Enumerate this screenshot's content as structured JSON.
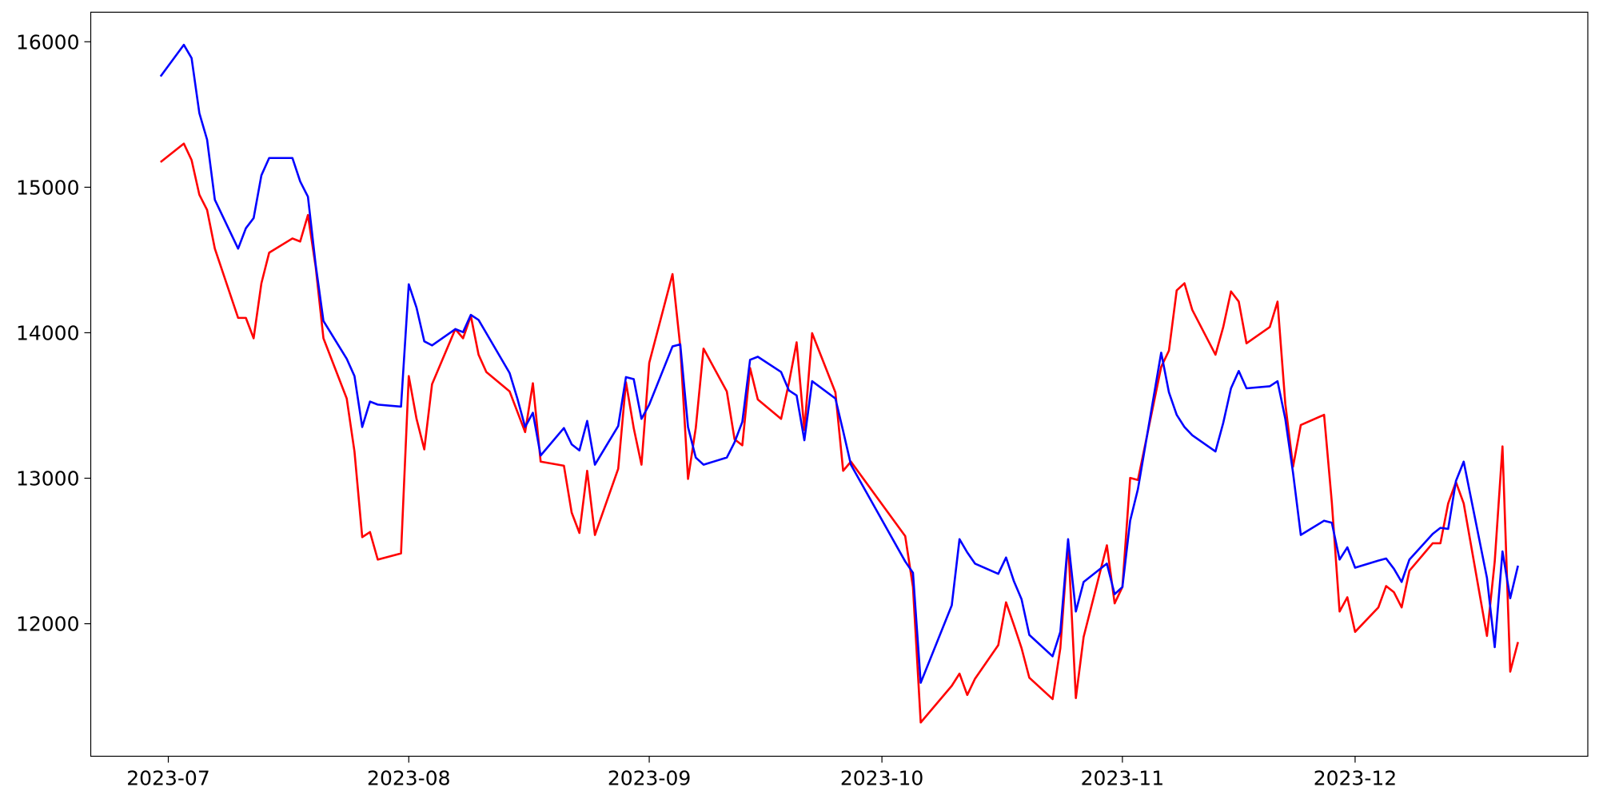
{
  "chart_data": {
    "type": "line",
    "x": [
      "2023-06-30",
      "2023-07-03",
      "2023-07-04",
      "2023-07-05",
      "2023-07-06",
      "2023-07-07",
      "2023-07-10",
      "2023-07-11",
      "2023-07-12",
      "2023-07-13",
      "2023-07-14",
      "2023-07-17",
      "2023-07-18",
      "2023-07-19",
      "2023-07-20",
      "2023-07-21",
      "2023-07-24",
      "2023-07-25",
      "2023-07-26",
      "2023-07-27",
      "2023-07-28",
      "2023-07-31",
      "2023-08-01",
      "2023-08-02",
      "2023-08-03",
      "2023-08-04",
      "2023-08-07",
      "2023-08-08",
      "2023-08-09",
      "2023-08-10",
      "2023-08-11",
      "2023-08-14",
      "2023-08-15",
      "2023-08-16",
      "2023-08-17",
      "2023-08-18",
      "2023-08-21",
      "2023-08-22",
      "2023-08-23",
      "2023-08-24",
      "2023-08-25",
      "2023-08-28",
      "2023-08-29",
      "2023-08-30",
      "2023-08-31",
      "2023-09-01",
      "2023-09-04",
      "2023-09-05",
      "2023-09-06",
      "2023-09-07",
      "2023-09-08",
      "2023-09-11",
      "2023-09-12",
      "2023-09-13",
      "2023-09-14",
      "2023-09-15",
      "2023-09-18",
      "2023-09-19",
      "2023-09-20",
      "2023-09-21",
      "2023-09-22",
      "2023-09-25",
      "2023-09-26",
      "2023-09-27",
      "2023-10-04",
      "2023-10-05",
      "2023-10-06",
      "2023-10-10",
      "2023-10-11",
      "2023-10-12",
      "2023-10-13",
      "2023-10-16",
      "2023-10-17",
      "2023-10-18",
      "2023-10-19",
      "2023-10-20",
      "2023-10-23",
      "2023-10-24",
      "2023-10-25",
      "2023-10-26",
      "2023-10-27",
      "2023-10-30",
      "2023-10-31",
      "2023-11-01",
      "2023-11-02",
      "2023-11-03",
      "2023-11-06",
      "2023-11-07",
      "2023-11-08",
      "2023-11-09",
      "2023-11-10",
      "2023-11-13",
      "2023-11-14",
      "2023-11-15",
      "2023-11-16",
      "2023-11-17",
      "2023-11-20",
      "2023-11-21",
      "2023-11-22",
      "2023-11-23",
      "2023-11-24",
      "2023-11-27",
      "2023-11-28",
      "2023-11-29",
      "2023-11-30",
      "2023-12-01",
      "2023-12-04",
      "2023-12-05",
      "2023-12-06",
      "2023-12-07",
      "2023-12-08",
      "2023-12-11",
      "2023-12-12",
      "2023-12-13",
      "2023-12-14",
      "2023-12-15",
      "2023-12-18",
      "2023-12-19",
      "2023-12-20",
      "2023-12-21",
      "2023-12-22"
    ],
    "series": [
      {
        "color": "#ff0000",
        "values": [
          15173,
          15300,
          15187,
          14949,
          14844,
          14578,
          14102,
          14102,
          13962,
          14340,
          14550,
          14648,
          14627,
          14809,
          14452,
          13962,
          13548,
          13184,
          12595,
          12630,
          12441,
          12483,
          13702,
          13408,
          13198,
          13646,
          14025,
          13962,
          14116,
          13849,
          13730,
          13597,
          13457,
          13317,
          13653,
          13114,
          13086,
          12764,
          12624,
          13051,
          12610,
          13065,
          13660,
          13345,
          13093,
          13793,
          14403,
          13906,
          12995,
          13345,
          13891,
          13597,
          13268,
          13226,
          13758,
          13541,
          13408,
          13653,
          13934,
          13331,
          13997,
          13590,
          13051,
          13114,
          12602,
          12252,
          11321,
          11573,
          11657,
          11510,
          11622,
          11853,
          12147,
          11993,
          11832,
          11629,
          11482,
          11832,
          12567,
          11489,
          11909,
          12539,
          12140,
          12252,
          13002,
          12988,
          13765,
          13877,
          14291,
          14340,
          14158,
          13849,
          14039,
          14284,
          14214,
          13927,
          14039,
          14214,
          13513,
          13079,
          13366,
          13436,
          12834,
          12084,
          12182,
          11944,
          12112,
          12259,
          12217,
          12112,
          12364,
          12553,
          12553,
          12827,
          12974,
          12827,
          11916,
          12428,
          13219,
          11671,
          11874
        ]
      },
      {
        "color": "#0000ff",
        "values": [
          15762,
          15979,
          15888,
          15510,
          15327,
          14914,
          14578,
          14718,
          14788,
          15082,
          15201,
          15201,
          15040,
          14935,
          14466,
          14081,
          13821,
          13702,
          13352,
          13527,
          13506,
          13492,
          14333,
          14172,
          13941,
          13913,
          14025,
          14004,
          14123,
          14088,
          13997,
          13723,
          13548,
          13352,
          13450,
          13156,
          13345,
          13233,
          13191,
          13394,
          13093,
          13359,
          13695,
          13681,
          13408,
          13506,
          13906,
          13920,
          13352,
          13142,
          13093,
          13142,
          13247,
          13387,
          13814,
          13835,
          13730,
          13604,
          13569,
          13261,
          13667,
          13548,
          13324,
          13093,
          12428,
          12350,
          11594,
          12126,
          12581,
          12490,
          12413,
          12343,
          12455,
          12294,
          12168,
          11923,
          11776,
          11944,
          12581,
          12084,
          12287,
          12413,
          12203,
          12252,
          12708,
          12925,
          13863,
          13590,
          13436,
          13352,
          13296,
          13184,
          13380,
          13618,
          13737,
          13618,
          13632,
          13667,
          13408,
          13037,
          12610,
          12708,
          12694,
          12441,
          12525,
          12385,
          12434,
          12448,
          12378,
          12287,
          12441,
          12617,
          12659,
          12652,
          12981,
          13114,
          12315,
          11839,
          12497,
          12175,
          12399
        ]
      }
    ],
    "xlim": [
      "2023-06-21",
      "2023-12-31"
    ],
    "xticks": [
      {
        "value": "2023-07-01",
        "label": "2023-07"
      },
      {
        "value": "2023-08-01",
        "label": "2023-08"
      },
      {
        "value": "2023-09-01",
        "label": "2023-09"
      },
      {
        "value": "2023-10-01",
        "label": "2023-10"
      },
      {
        "value": "2023-11-01",
        "label": "2023-11"
      },
      {
        "value": "2023-12-01",
        "label": "2023-12"
      }
    ],
    "ylim": [
      11089,
      16203
    ],
    "yticks": [
      12000,
      13000,
      14000,
      15000,
      16000
    ],
    "grid": false
  }
}
